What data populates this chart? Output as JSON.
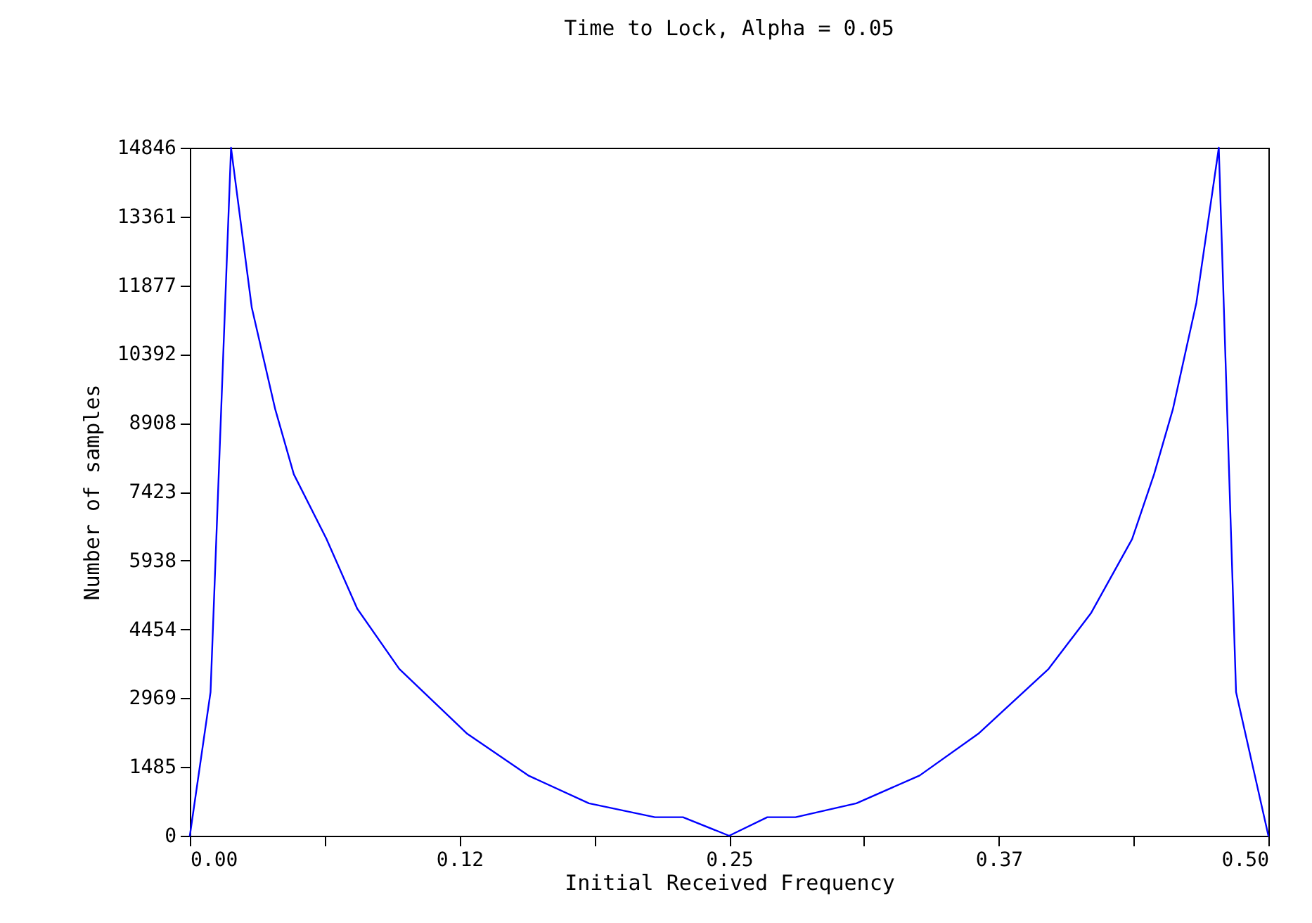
{
  "chart_data": {
    "type": "line",
    "title": "Time to Lock, Alpha = 0.05",
    "xlabel": "Initial Received Frequency",
    "ylabel": "Number of samples",
    "x": [
      0,
      0.0096,
      0.0191,
      0.0287,
      0.0396,
      0.0482,
      0.0634,
      0.0776,
      0.0971,
      0.1286,
      0.1569,
      0.185,
      0.2156,
      0.2286,
      0.25,
      0.2677,
      0.2808,
      0.309,
      0.3383,
      0.3655,
      0.3981,
      0.4177,
      0.4368,
      0.447,
      0.4557,
      0.4666,
      0.477,
      0.485,
      0.5
    ],
    "series": [
      {
        "color": "#0000ff",
        "values": [
          0,
          3100,
          14846,
          11400,
          9200,
          7800,
          6400,
          4900,
          3600,
          2200,
          1300,
          700,
          400,
          400,
          0,
          400,
          400,
          700,
          1300,
          2200,
          3600,
          4800,
          6400,
          7800,
          9200,
          11500,
          14846,
          3100,
          0
        ]
      }
    ],
    "xlim": [
      0,
      0.5
    ],
    "xticks": [
      {
        "value": 0,
        "label": "0.00"
      },
      {
        "value": 0.0625,
        "label": null
      },
      {
        "value": 0.125,
        "label": "0.12"
      },
      {
        "value": 0.1875,
        "label": null
      },
      0.25,
      {
        "value": 0.3125,
        "label": null
      },
      {
        "value": 0.375,
        "label": "0.37"
      },
      {
        "value": 0.4375,
        "label": null
      },
      {
        "value": 0.5,
        "label": "0.50"
      }
    ],
    "ylim": [
      0,
      14846
    ],
    "yticks": [
      0,
      1485,
      2969,
      4454,
      5938,
      7423,
      8908,
      10392,
      11877,
      13361,
      14846
    ],
    "grid": false,
    "line_style": "solid"
  }
}
